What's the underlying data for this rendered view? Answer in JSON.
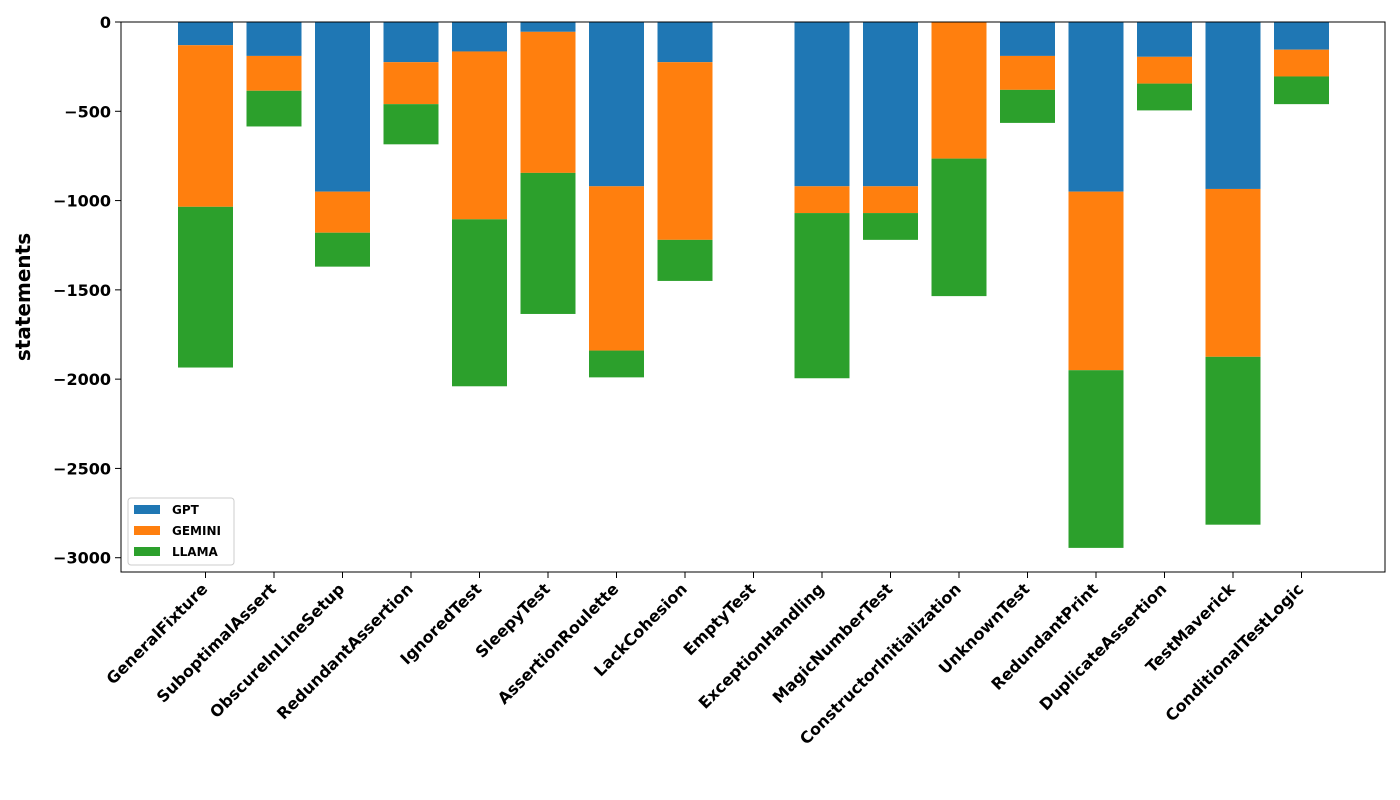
{
  "chart_data": {
    "type": "bar",
    "stacked": true,
    "title": "",
    "xlabel": "",
    "ylabel": "statements",
    "ylim": [
      -3080,
      0
    ],
    "yticks": [
      0,
      -500,
      -1000,
      -1500,
      -2000,
      -2500,
      -3000
    ],
    "ytick_labels": [
      "0",
      "−500",
      "−1000",
      "−1500",
      "−2000",
      "−2500",
      "−3000"
    ],
    "grid": false,
    "legend_position": "lower-left",
    "categories": [
      "GeneralFixture",
      "SuboptimalAssert",
      "ObscureInLineSetup",
      "RedundantAssertion",
      "IgnoredTest",
      "SleepyTest",
      "AssertionRoulette",
      "LackCohesion",
      "EmptyTest",
      "ExceptionHandling",
      "MagicNumberTest",
      "ConstructorInitialization",
      "UnknownTest",
      "RedundantPrint",
      "DuplicateAssertion",
      "TestMaverick",
      "ConditionalTestLogic"
    ],
    "series": [
      {
        "name": "GPT",
        "color": "#1f77b4",
        "values": [
          -130,
          -190,
          -950,
          -225,
          -165,
          -55,
          -920,
          -225,
          0,
          -920,
          -920,
          0,
          -190,
          -950,
          -195,
          -935,
          -155
        ]
      },
      {
        "name": "GEMINI",
        "color": "#ff7f0e",
        "values": [
          -905,
          -195,
          -230,
          -235,
          -940,
          -790,
          -920,
          -995,
          0,
          -150,
          -150,
          -765,
          -190,
          -1000,
          -150,
          -940,
          -150
        ]
      },
      {
        "name": "LLAMA",
        "color": "#2ca02c",
        "values": [
          -900,
          -200,
          -190,
          -225,
          -935,
          -790,
          -150,
          -230,
          0,
          -925,
          -150,
          -770,
          -185,
          -995,
          -150,
          -940,
          -155
        ]
      }
    ]
  }
}
